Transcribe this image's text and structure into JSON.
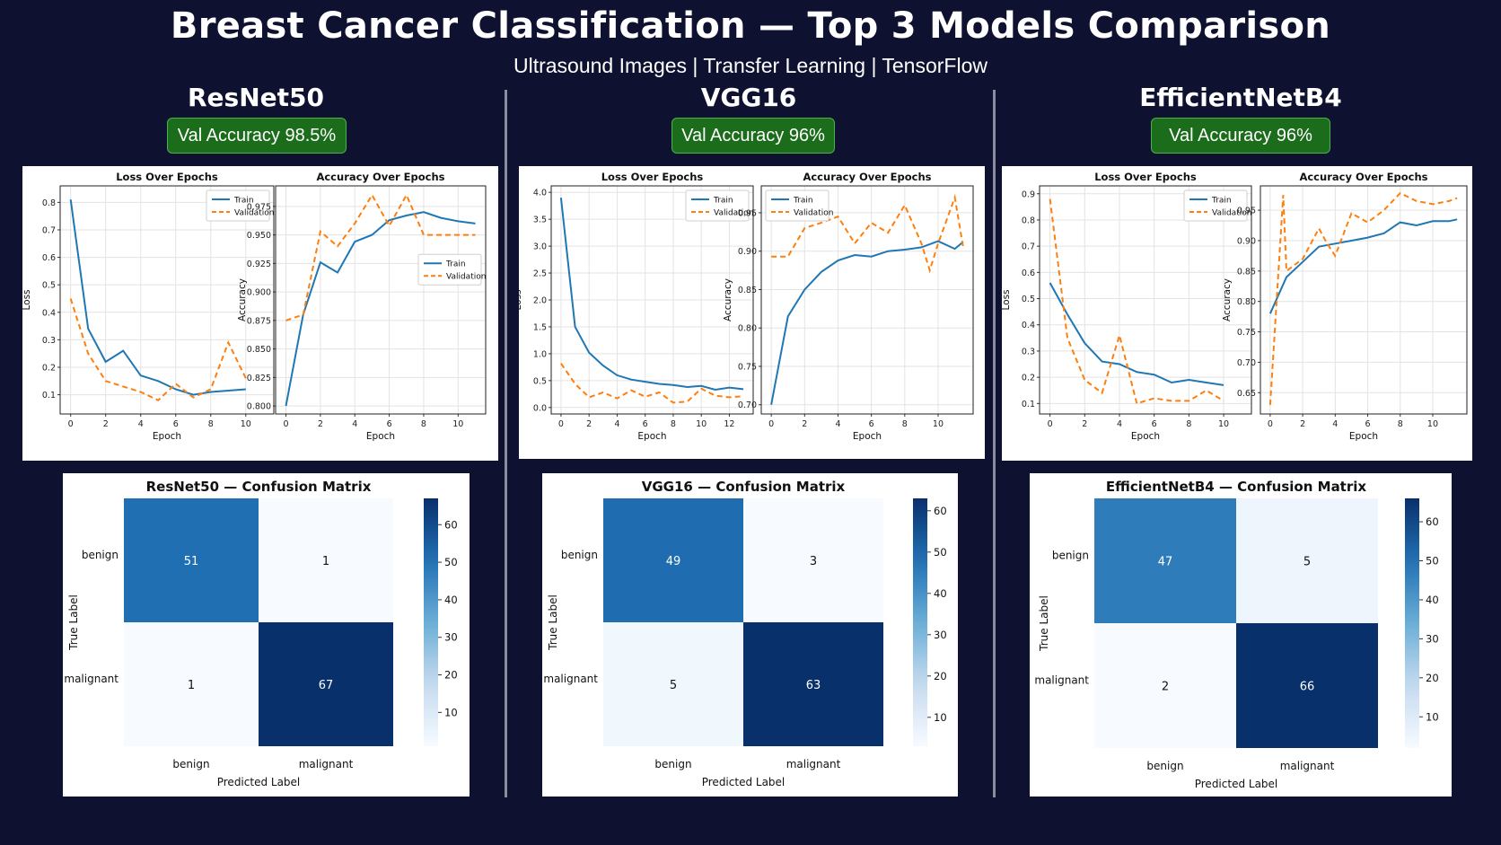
{
  "title": "Breast Cancer Classification — Top 3 Models Comparison",
  "subtitle": "Ultrasound Images | Transfer Learning | TensorFlow",
  "colors": {
    "background": "#0e1130",
    "badge": "#1b6d1b",
    "train": "#1f77b4",
    "validation": "#ff7f0e",
    "cm_low": "#f7fbff",
    "cm_high": "#08306b"
  },
  "models": [
    {
      "name": "ResNet50",
      "badge": "Val Accuracy 98.5%"
    },
    {
      "name": "VGG16",
      "badge": "Val Accuracy 96%"
    },
    {
      "name": "EfficientNetB4",
      "badge": "Val Accuracy 96%"
    }
  ],
  "chart_data": [
    {
      "type": "line",
      "model": "ResNet50",
      "title": "Loss Over Epochs",
      "xlabel": "Epoch",
      "ylabel": "Loss",
      "xlim": [
        -0.6,
        11.6
      ],
      "ylim": [
        0.03,
        0.86
      ],
      "xticks": [
        0,
        2,
        4,
        6,
        8,
        10
      ],
      "yticks": [
        0.1,
        0.2,
        0.3,
        0.4,
        0.5,
        0.6,
        0.7,
        0.8
      ],
      "legend": "top-right",
      "series": [
        {
          "name": "Train",
          "style": "solid",
          "x": [
            0,
            1,
            2,
            3,
            4,
            5,
            6,
            7,
            8,
            9,
            10
          ],
          "y": [
            0.81,
            0.34,
            0.22,
            0.26,
            0.17,
            0.15,
            0.12,
            0.1,
            0.11,
            0.115,
            0.12
          ]
        },
        {
          "name": "Validation",
          "style": "dashed",
          "x": [
            0,
            1,
            2,
            3,
            4,
            5,
            6,
            7,
            8,
            9,
            10
          ],
          "y": [
            0.45,
            0.25,
            0.15,
            0.13,
            0.11,
            0.08,
            0.14,
            0.09,
            0.12,
            0.29,
            0.16
          ]
        }
      ]
    },
    {
      "type": "line",
      "model": "ResNet50",
      "title": "Accuracy Over Epochs",
      "xlabel": "Epoch",
      "ylabel": "Accuracy",
      "xlim": [
        -0.6,
        11.6
      ],
      "ylim": [
        0.793,
        0.993
      ],
      "xticks": [
        0,
        2,
        4,
        6,
        8,
        10
      ],
      "yticks": [
        0.8,
        0.825,
        0.85,
        0.875,
        0.9,
        0.925,
        0.95,
        0.975
      ],
      "legend": "center-right",
      "series": [
        {
          "name": "Train",
          "style": "solid",
          "x": [
            0,
            1,
            2,
            3,
            4,
            5,
            6,
            7,
            8,
            9,
            10,
            11
          ],
          "y": [
            0.8,
            0.88,
            0.926,
            0.917,
            0.944,
            0.95,
            0.963,
            0.967,
            0.97,
            0.965,
            0.962,
            0.96
          ]
        },
        {
          "name": "Validation",
          "style": "dashed",
          "x": [
            0,
            1,
            2,
            3,
            4,
            5,
            6,
            7,
            8,
            9,
            10,
            11
          ],
          "y": [
            0.875,
            0.88,
            0.953,
            0.94,
            0.96,
            0.985,
            0.958,
            0.985,
            0.95,
            0.95,
            0.95,
            0.95
          ]
        }
      ]
    },
    {
      "type": "line",
      "model": "VGG16",
      "title": "Loss Over Epochs",
      "xlabel": "Epoch",
      "ylabel": "Loss",
      "xlim": [
        -0.7,
        13.7
      ],
      "ylim": [
        -0.12,
        4.12
      ],
      "xticks": [
        0,
        2,
        4,
        6,
        8,
        10,
        12
      ],
      "yticks": [
        0.0,
        0.5,
        1.0,
        1.5,
        2.0,
        2.5,
        3.0,
        3.5,
        4.0
      ],
      "legend": "top-right",
      "series": [
        {
          "name": "Train",
          "style": "solid",
          "x": [
            0,
            1,
            2,
            3,
            4,
            5,
            6,
            7,
            8,
            9,
            10,
            11,
            12,
            13
          ],
          "y": [
            3.9,
            1.5,
            1.02,
            0.78,
            0.6,
            0.52,
            0.48,
            0.44,
            0.42,
            0.38,
            0.4,
            0.33,
            0.37,
            0.34
          ]
        },
        {
          "name": "Validation",
          "style": "dashed",
          "x": [
            0,
            1,
            2,
            3,
            4,
            5,
            6,
            7,
            8,
            9,
            10,
            11,
            12,
            13
          ],
          "y": [
            0.82,
            0.44,
            0.19,
            0.28,
            0.17,
            0.32,
            0.2,
            0.28,
            0.09,
            0.11,
            0.35,
            0.22,
            0.19,
            0.21
          ]
        }
      ]
    },
    {
      "type": "line",
      "model": "VGG16",
      "title": "Accuracy Over Epochs",
      "xlabel": "Epoch",
      "ylabel": "Accuracy",
      "xlim": [
        -0.6,
        12.1
      ],
      "ylim": [
        0.688,
        0.985
      ],
      "xticks": [
        0,
        2,
        4,
        6,
        8,
        10
      ],
      "yticks": [
        0.7,
        0.75,
        0.8,
        0.85,
        0.9,
        0.95
      ],
      "legend": "top-left",
      "series": [
        {
          "name": "Train",
          "style": "solid",
          "x": [
            0,
            1,
            2,
            3,
            4,
            5,
            6,
            7,
            8,
            9,
            10,
            11,
            11.5
          ],
          "y": [
            0.7,
            0.815,
            0.85,
            0.873,
            0.888,
            0.895,
            0.893,
            0.9,
            0.902,
            0.905,
            0.913,
            0.903,
            0.912
          ]
        },
        {
          "name": "Validation",
          "style": "dashed",
          "x": [
            0,
            1,
            2,
            3,
            4,
            5,
            6,
            7,
            8,
            9,
            9.5,
            10,
            11,
            11.5
          ],
          "y": [
            0.893,
            0.893,
            0.93,
            0.937,
            0.945,
            0.91,
            0.937,
            0.924,
            0.96,
            0.91,
            0.875,
            0.91,
            0.97,
            0.905
          ]
        }
      ]
    },
    {
      "type": "line",
      "model": "EfficientNetB4",
      "title": "Loss Over Epochs",
      "xlabel": "Epoch",
      "ylabel": "Loss",
      "xlim": [
        -0.6,
        11.6
      ],
      "ylim": [
        0.06,
        0.93
      ],
      "xticks": [
        0,
        2,
        4,
        6,
        8,
        10
      ],
      "yticks": [
        0.1,
        0.2,
        0.3,
        0.4,
        0.5,
        0.6,
        0.7,
        0.8,
        0.9
      ],
      "legend": "top-right",
      "series": [
        {
          "name": "Train",
          "style": "solid",
          "x": [
            0,
            1,
            2,
            3,
            4,
            5,
            6,
            7,
            8,
            9,
            10
          ],
          "y": [
            0.56,
            0.44,
            0.33,
            0.26,
            0.25,
            0.22,
            0.21,
            0.18,
            0.19,
            0.18,
            0.17
          ]
        },
        {
          "name": "Validation",
          "style": "dashed",
          "x": [
            0,
            1,
            2,
            3,
            4,
            5,
            6,
            7,
            8,
            9,
            10
          ],
          "y": [
            0.88,
            0.35,
            0.19,
            0.14,
            0.36,
            0.1,
            0.12,
            0.11,
            0.11,
            0.15,
            0.11
          ]
        }
      ]
    },
    {
      "type": "line",
      "model": "EfficientNetB4",
      "title": "Accuracy Over Epochs",
      "xlabel": "Epoch",
      "ylabel": "Accuracy",
      "xlim": [
        -0.6,
        12.1
      ],
      "ylim": [
        0.615,
        0.99
      ],
      "xticks": [
        0,
        2,
        4,
        6,
        8,
        10
      ],
      "yticks": [
        0.65,
        0.7,
        0.75,
        0.8,
        0.85,
        0.9,
        0.95
      ],
      "legend": "none",
      "series": [
        {
          "name": "Train",
          "style": "solid",
          "x": [
            0,
            1,
            2,
            3,
            4,
            5,
            6,
            7,
            8,
            9,
            10,
            11,
            11.5
          ],
          "y": [
            0.78,
            0.84,
            0.865,
            0.89,
            0.895,
            0.9,
            0.905,
            0.912,
            0.93,
            0.925,
            0.932,
            0.932,
            0.935
          ]
        },
        {
          "name": "Validation",
          "style": "dashed",
          "x": [
            0,
            0.8,
            1,
            2,
            3,
            3.5,
            4,
            5,
            6,
            7,
            8,
            9,
            10,
            11,
            11.5
          ],
          "y": [
            0.63,
            0.975,
            0.85,
            0.87,
            0.92,
            0.895,
            0.875,
            0.945,
            0.93,
            0.95,
            0.978,
            0.965,
            0.96,
            0.965,
            0.97
          ]
        }
      ]
    },
    {
      "type": "heatmap",
      "model": "ResNet50",
      "title": "ResNet50 — Confusion Matrix",
      "xlabel": "Predicted Label",
      "ylabel": "True Label",
      "categories": [
        "benign",
        "malignant"
      ],
      "matrix": [
        [
          51,
          1
        ],
        [
          1,
          67
        ]
      ],
      "colorbar_range": [
        1,
        67
      ],
      "colorbar_ticks": [
        10,
        20,
        30,
        40,
        50,
        60
      ]
    },
    {
      "type": "heatmap",
      "model": "VGG16",
      "title": "VGG16 — Confusion Matrix",
      "xlabel": "Predicted Label",
      "ylabel": "True Label",
      "categories": [
        "benign",
        "malignant"
      ],
      "matrix": [
        [
          49,
          3
        ],
        [
          5,
          63
        ]
      ],
      "colorbar_range": [
        3,
        63
      ],
      "colorbar_ticks": [
        10,
        20,
        30,
        40,
        50,
        60
      ]
    },
    {
      "type": "heatmap",
      "model": "EfficientNetB4",
      "title": "EfficientNetB4 — Confusion Matrix",
      "xlabel": "Predicted Label",
      "ylabel": "True Label",
      "categories": [
        "benign",
        "malignant"
      ],
      "matrix": [
        [
          47,
          5
        ],
        [
          2,
          66
        ]
      ],
      "colorbar_range": [
        2,
        66
      ],
      "colorbar_ticks": [
        10,
        20,
        30,
        40,
        50,
        60
      ]
    }
  ]
}
